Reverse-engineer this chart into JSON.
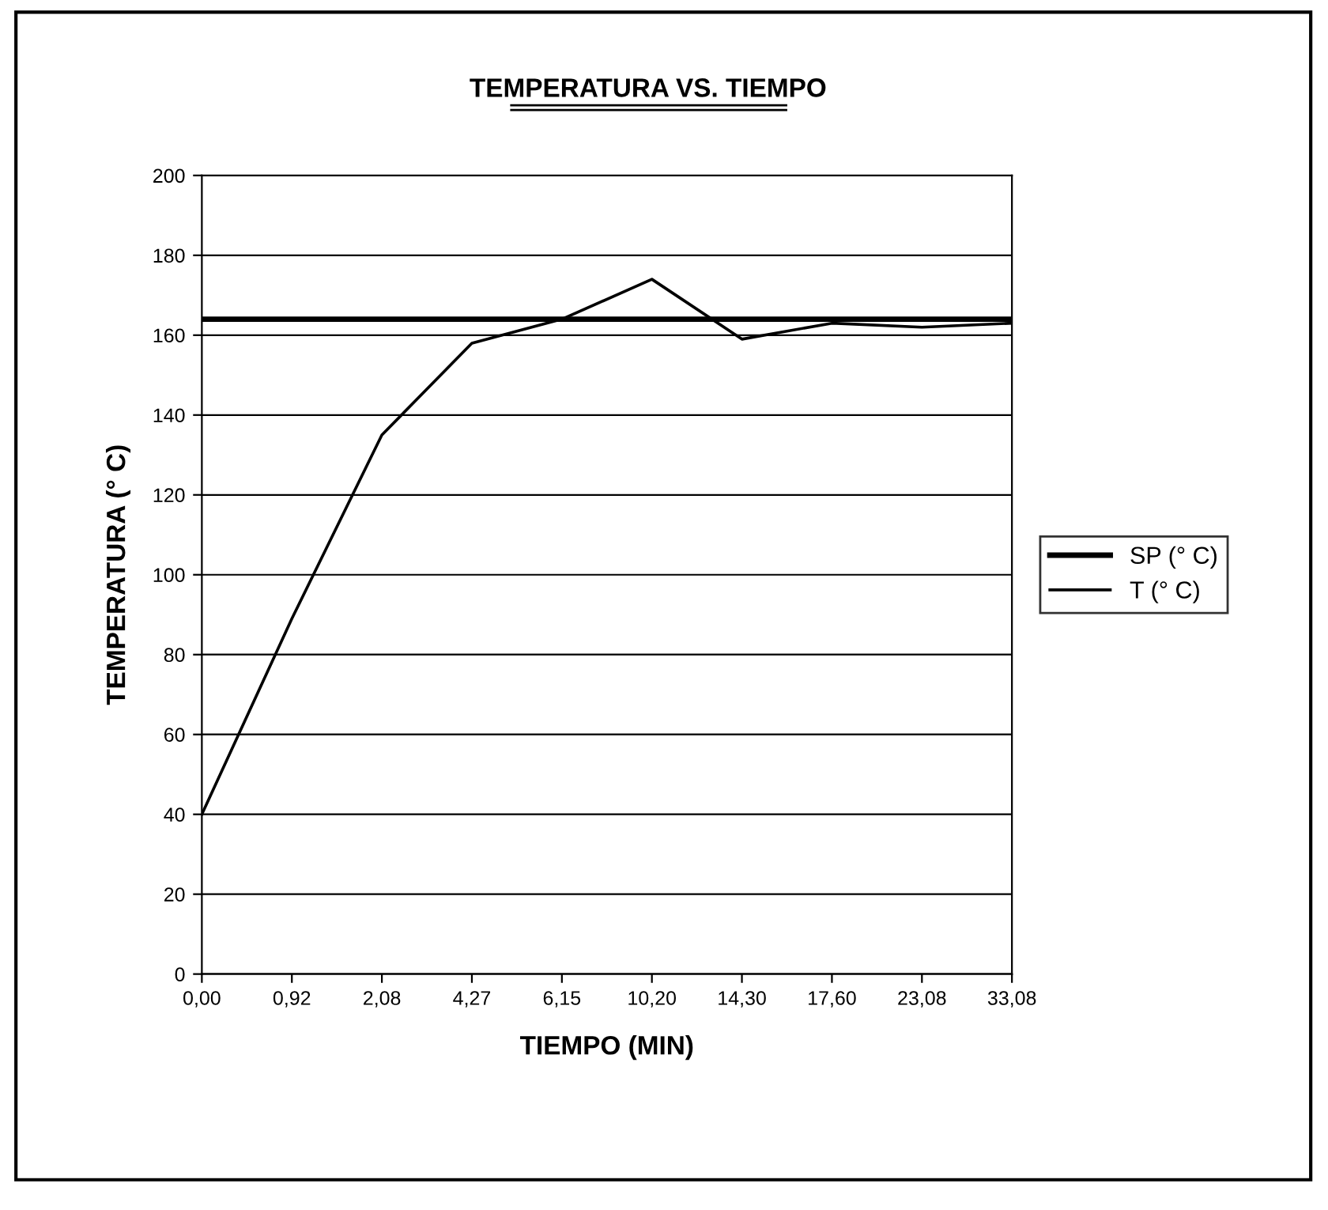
{
  "chart_data": {
    "type": "line",
    "title": "TEMPERATURA VS. TIEMPO",
    "xlabel": "TIEMPO (MIN)",
    "ylabel": "TEMPERATURA (° C)",
    "categories": [
      "0,00",
      "0,92",
      "2,08",
      "4,27",
      "6,15",
      "10,20",
      "14,30",
      "17,60",
      "23,08",
      "33,08"
    ],
    "series": [
      {
        "name": "SP (° C)",
        "color": "#000000",
        "values": [
          164,
          164,
          164,
          164,
          164,
          164,
          164,
          164,
          164,
          164
        ]
      },
      {
        "name": "T (° C)",
        "color": "#000000",
        "values": [
          40,
          89,
          135,
          158,
          164,
          174,
          159,
          163,
          162,
          163
        ]
      }
    ],
    "ylim": [
      0,
      200
    ],
    "yticks": [
      0,
      20,
      40,
      60,
      80,
      100,
      120,
      140,
      160,
      180,
      200
    ],
    "grid": "y",
    "legend": "right",
    "marker": "none",
    "line_style": "solid"
  }
}
